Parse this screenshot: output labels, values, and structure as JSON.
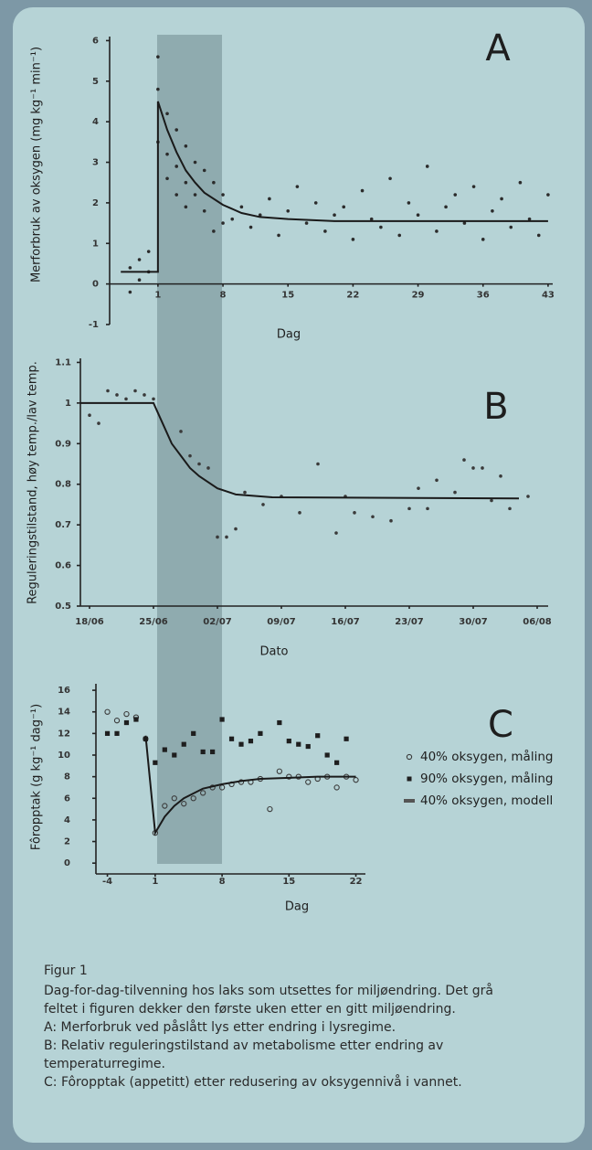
{
  "chart_data": [
    {
      "type": "scatter",
      "label": "A",
      "x_label": "Dag",
      "y_label": "Merforbruk av oksygen (mg kg⁻¹ min⁻¹)",
      "xlim": [
        -4.2,
        43.5
      ],
      "ylim": [
        -1,
        6.1
      ],
      "xticks": [
        1,
        8,
        15,
        22,
        29,
        36,
        43
      ],
      "yticks": [
        -1,
        0,
        1,
        2,
        3,
        4,
        5,
        6
      ],
      "x_axis_at_zero": true,
      "series": [
        {
          "style": "points",
          "marker": "circle",
          "color": "#2b2b2b",
          "x": [
            -2,
            -2,
            -1,
            -1,
            0,
            0,
            1,
            1,
            1,
            2,
            2,
            2,
            3,
            3,
            3,
            4,
            4,
            4,
            5,
            5,
            6,
            6,
            7,
            7,
            8,
            8,
            9,
            10,
            11,
            12,
            13,
            14,
            15,
            16,
            17,
            18,
            19,
            20,
            21,
            22,
            23,
            24,
            25,
            26,
            27,
            28,
            29,
            30,
            31,
            32,
            33,
            34,
            35,
            36,
            37,
            38,
            39,
            40,
            41,
            42,
            43
          ],
          "values": [
            -0.2,
            0.4,
            0.1,
            0.6,
            0.3,
            0.8,
            5.6,
            4.8,
            3.5,
            4.2,
            3.2,
            2.6,
            3.8,
            2.9,
            2.2,
            3.4,
            2.5,
            1.9,
            3.0,
            2.2,
            2.8,
            1.8,
            2.5,
            1.3,
            2.2,
            1.5,
            1.6,
            1.9,
            1.4,
            1.7,
            2.1,
            1.2,
            1.8,
            2.4,
            1.5,
            2.0,
            1.3,
            1.7,
            1.9,
            1.1,
            2.3,
            1.6,
            1.4,
            2.6,
            1.2,
            2.0,
            1.7,
            2.9,
            1.3,
            1.9,
            2.2,
            1.5,
            2.4,
            1.1,
            1.8,
            2.1,
            1.4,
            2.5,
            1.6,
            1.2,
            2.2
          ]
        },
        {
          "style": "line",
          "color": "#1a1a1a",
          "x": [
            -3,
            1,
            1,
            2,
            3,
            4,
            5,
            6,
            8,
            10,
            12,
            15,
            20,
            43
          ],
          "values": [
            0.3,
            0.3,
            4.5,
            3.8,
            3.25,
            2.8,
            2.5,
            2.25,
            1.95,
            1.75,
            1.65,
            1.6,
            1.55,
            1.55
          ]
        }
      ]
    },
    {
      "type": "scatter",
      "label": "B",
      "x_label": "Dato",
      "y_label": "Reguleringstilstand, høy temp./lav temp.",
      "xlim": [
        -1,
        50.2
      ],
      "ylim": [
        0.5,
        1.11
      ],
      "xticks": [
        {
          "value": 0,
          "label": "18/06"
        },
        {
          "value": 7,
          "label": "25/06"
        },
        {
          "value": 14,
          "label": "02/07"
        },
        {
          "value": 21,
          "label": "09/07"
        },
        {
          "value": 28,
          "label": "16/07"
        },
        {
          "value": 35,
          "label": "23/07"
        },
        {
          "value": 42,
          "label": "30/07"
        },
        {
          "value": 49,
          "label": "06/08"
        }
      ],
      "yticks": [
        0.5,
        0.6,
        0.7,
        0.8,
        0.9,
        1,
        1.1
      ],
      "x_axis_at_zero": false,
      "series": [
        {
          "style": "points",
          "marker": "circle",
          "color": "#3a3a3a",
          "x": [
            0,
            1,
            2,
            3,
            4,
            5,
            6,
            7,
            10,
            11,
            12,
            13,
            14,
            15,
            16,
            17,
            19,
            21,
            23,
            25,
            27,
            28,
            29,
            31,
            33,
            35,
            36,
            37,
            38,
            40,
            41,
            42,
            43,
            44,
            45,
            46,
            48
          ],
          "values": [
            0.97,
            0.95,
            1.03,
            1.02,
            1.01,
            1.03,
            1.02,
            1.01,
            0.93,
            0.87,
            0.85,
            0.84,
            0.67,
            0.67,
            0.69,
            0.78,
            0.75,
            0.77,
            0.73,
            0.85,
            0.68,
            0.77,
            0.73,
            0.72,
            0.71,
            0.74,
            0.79,
            0.74,
            0.81,
            0.78,
            0.86,
            0.84,
            0.84,
            0.76,
            0.82,
            0.74,
            0.77
          ]
        },
        {
          "style": "line",
          "color": "#1a1a1a",
          "x": [
            -1,
            7,
            8,
            9,
            10,
            11,
            12,
            14,
            16,
            20,
            47
          ],
          "values": [
            1,
            1,
            0.95,
            0.9,
            0.87,
            0.84,
            0.82,
            0.79,
            0.775,
            0.768,
            0.765
          ]
        }
      ]
    },
    {
      "type": "scatter",
      "label": "C",
      "x_label": "Dag",
      "y_label": "Fôropptak (g kg⁻¹ dag⁻¹)",
      "xlim": [
        -5.2,
        23
      ],
      "ylim": [
        -1,
        16.6
      ],
      "xticks": [
        -4,
        1,
        8,
        15,
        22
      ],
      "yticks": [
        0,
        2,
        4,
        6,
        8,
        10,
        12,
        14,
        16
      ],
      "x_axis_at_zero": false,
      "legend": "right",
      "series": [
        {
          "name": "40% oksygen, måling",
          "style": "points",
          "marker": "circle-open",
          "color": "#3a3a3a",
          "x": [
            -4,
            -3,
            -2,
            -1,
            0,
            1,
            2,
            3,
            4,
            5,
            6,
            7,
            8,
            9,
            10,
            11,
            12,
            13,
            14,
            15,
            16,
            17,
            18,
            19,
            20,
            21,
            22
          ],
          "values": [
            14,
            13.2,
            13.8,
            13.5,
            11.5,
            2.8,
            5.3,
            6.0,
            5.5,
            6.0,
            6.5,
            7.0,
            7.0,
            7.3,
            7.5,
            7.5,
            7.8,
            5.0,
            8.5,
            8.0,
            8.0,
            7.5,
            7.8,
            8.0,
            7.0,
            8.0,
            7.7
          ]
        },
        {
          "name": "90% oksygen, måling",
          "style": "points",
          "marker": "square",
          "color": "#1e1e1e",
          "x": [
            -4,
            -3,
            -2,
            -1,
            0,
            1,
            2,
            3,
            4,
            5,
            6,
            7,
            8,
            9,
            10,
            11,
            12,
            14,
            15,
            16,
            17,
            18,
            19,
            20,
            21
          ],
          "values": [
            12,
            12,
            13,
            13.3,
            11.5,
            9.3,
            10.5,
            10,
            11,
            12,
            10.3,
            10.3,
            13.3,
            11.5,
            11,
            11.3,
            12,
            13,
            11.3,
            11,
            10.8,
            11.8,
            10,
            9.3,
            11.5
          ]
        },
        {
          "name": "40% oksygen, modell",
          "style": "line",
          "color": "#1a1a1a",
          "x": [
            0,
            1,
            2,
            3,
            4,
            6,
            8,
            10,
            12,
            15,
            18,
            22
          ],
          "values": [
            11.8,
            2.8,
            4.3,
            5.3,
            6.0,
            6.9,
            7.3,
            7.6,
            7.8,
            7.9,
            8.0,
            8.0
          ]
        }
      ]
    }
  ],
  "caption": {
    "title": "Figur 1",
    "lines": [
      "Dag-for-dag-tilvenning hos laks som utsettes for miljøendring. Det grå",
      "feltet i figuren dekker den første uken etter en gitt miljøendring.",
      "A: Merforbruk ved påslått lys etter endring i lysregime.",
      "B: Relativ reguleringstilstand av metabolisme etter endring av",
      "temperaturregime.",
      "C: Fôropptak (appetitt) etter redusering av oksygennivå i vannet."
    ]
  }
}
